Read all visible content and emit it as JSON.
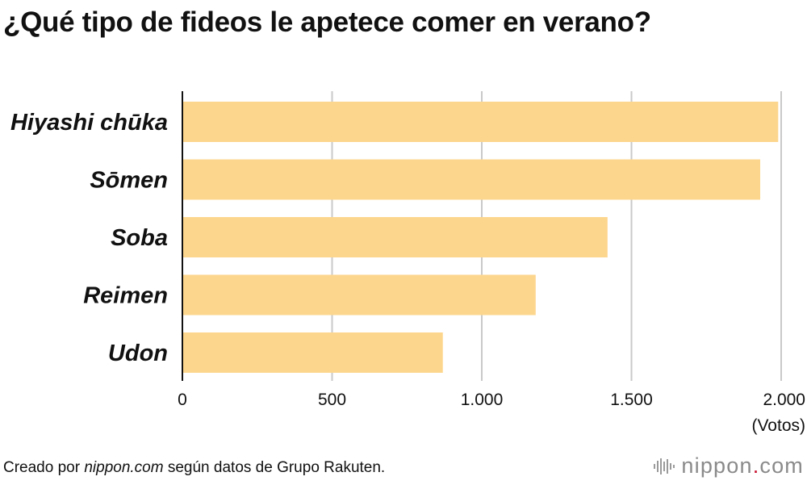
{
  "title": "¿Qué tipo de fideos le apetece comer en verano?",
  "chart_data": {
    "type": "bar",
    "orientation": "horizontal",
    "categories": [
      "Hiyashi chūka",
      "Sōmen",
      "Soba",
      "Reimen",
      "Udon"
    ],
    "values": [
      1990,
      1930,
      1420,
      1180,
      870
    ],
    "xlim": [
      0,
      2000
    ],
    "xticks": [
      0,
      500,
      1000,
      1500,
      2000
    ],
    "xtick_labels": [
      "0",
      "500",
      "1.000",
      "1.500",
      "2.000"
    ],
    "xunit": "(Votos)",
    "bar_color": "#fdd68e",
    "grid": true
  },
  "footer": {
    "prefix": "Creado por ",
    "source": "nippon.com",
    "suffix": " según datos de Grupo Rakuten."
  },
  "logo": {
    "name": "nippon",
    "dot": ".",
    "tld": "com",
    "icon": "sound-wave-icon"
  }
}
